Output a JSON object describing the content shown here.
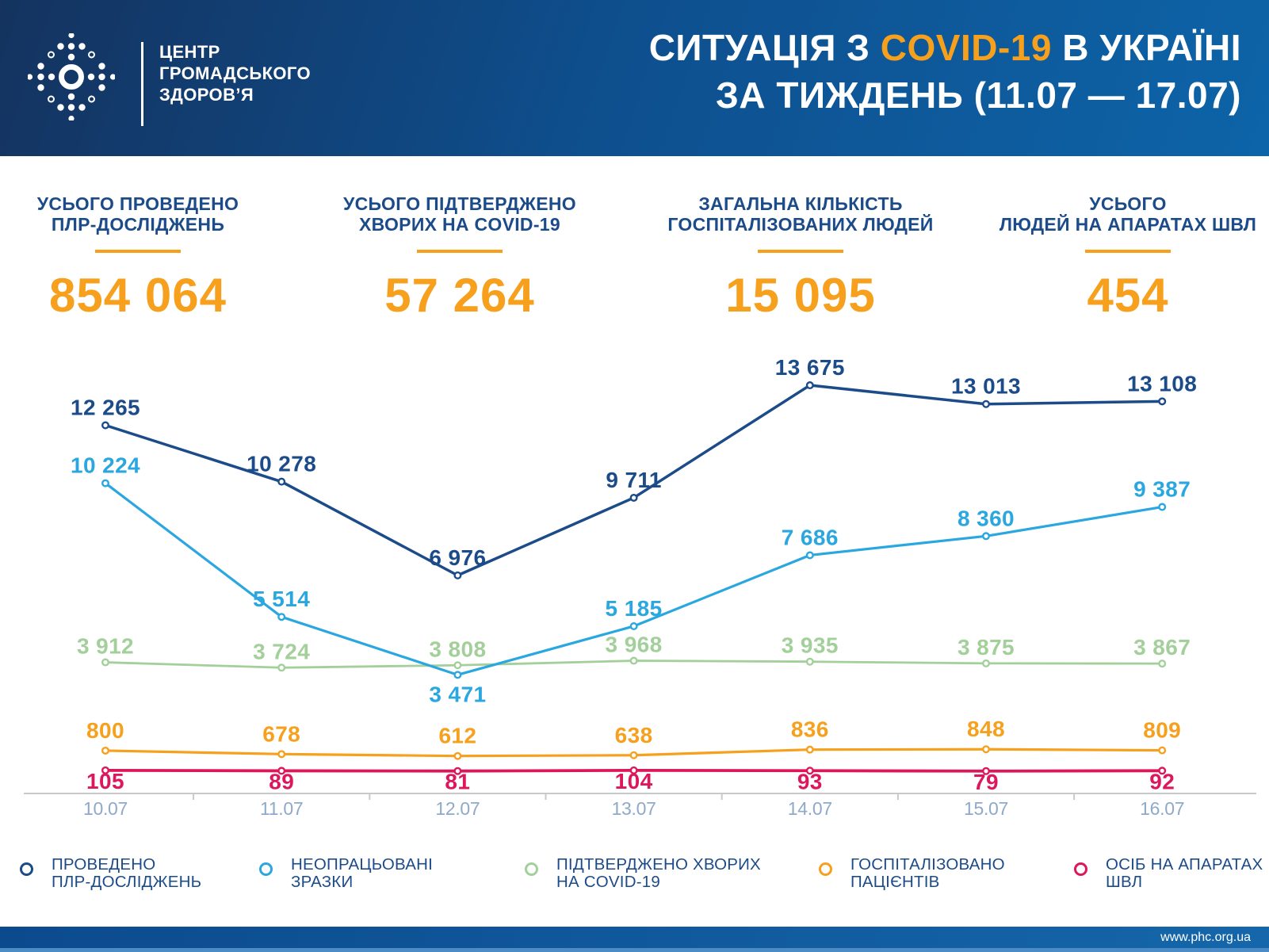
{
  "colors": {
    "navy": "#1c4b8a",
    "accent_orange": "#f6a01e",
    "light_blue": "#2ba7e0",
    "green": "#a3cf9b",
    "red": "#dd175c",
    "axis": "#c9c9c9",
    "date_label": "#8fa9c8",
    "header_gradient": [
      "#14335f",
      "#0e4f8e",
      "#0d64a8"
    ],
    "footer_gradient": [
      "#0c4a8e",
      "#1566aa"
    ],
    "footer_strip": "#4b8cc6"
  },
  "header": {
    "logo_lines": [
      "ЦЕНТР",
      "ГРОМАДСЬКОГО",
      "ЗДОРОВ’Я"
    ],
    "title_prefix": "СИТУАЦІЯ З ",
    "title_highlight": "COVID-19",
    "title_suffix": " В УКРАЇНІ",
    "title_line2": "ЗА ТИЖДЕНЬ (11.07 — 17.07)"
  },
  "stats": [
    {
      "line1": "УСЬОГО ПРОВЕДЕНО",
      "line2": "ПЛР-ДОСЛІДЖЕНЬ",
      "value": "854 064"
    },
    {
      "line1": "УСЬОГО ПІДТВЕРДЖЕНО",
      "line2": "ХВОРИХ НА COVID-19",
      "value": "57 264"
    },
    {
      "line1": "ЗАГАЛЬНА КІЛЬКІСТЬ",
      "line2": "ГОСПІТАЛІЗОВАНИХ ЛЮДЕЙ",
      "value": "15 095"
    },
    {
      "line1": "УСЬОГО",
      "line2": "ЛЮДЕЙ НА АПАРАТАХ ШВЛ",
      "value": "454"
    }
  ],
  "chart_data": {
    "type": "line",
    "categories": [
      "10.07",
      "11.07",
      "12.07",
      "13.07",
      "14.07",
      "15.07",
      "16.07"
    ],
    "series": [
      {
        "name": "ПРОВЕДЕНО ПЛР-ДОСЛІДЖЕНЬ",
        "color": "#1c4b8a",
        "values": [
          12265,
          10278,
          6976,
          9711,
          13675,
          13013,
          13108
        ],
        "label_side": "above"
      },
      {
        "name": "НЕОПРАЦЬОВАНІ ЗРАЗКИ",
        "color": "#2ba7e0",
        "values": [
          10224,
          5514,
          3471,
          5185,
          7686,
          8360,
          9387
        ],
        "label_side": "above",
        "label_side_overrides": {
          "2": "below"
        }
      },
      {
        "name": "ПІДТВЕРДЖЕНО ХВОРИХ НА COVID-19",
        "color": "#a3cf9b",
        "values": [
          3912,
          3724,
          3808,
          3968,
          3935,
          3875,
          3867
        ],
        "label_side": "above"
      },
      {
        "name": "ГОСПІТАЛІЗОВАНО ПАЦІЄНТІВ",
        "color": "#f6a01e",
        "values": [
          800,
          678,
          612,
          638,
          836,
          848,
          809
        ],
        "label_side": "above"
      },
      {
        "name": "ОСІБ НА АПАРАТАХ ШВЛ",
        "color": "#dd175c",
        "values": [
          105,
          89,
          81,
          104,
          93,
          79,
          92
        ],
        "label_side": "below"
      }
    ],
    "ylim": [
      0,
      14000
    ],
    "grid": false,
    "legend_position": "bottom",
    "value_label_format": "space_thousands"
  },
  "legend": {
    "items": [
      {
        "line1": "ПРОВЕДЕНО",
        "line2": "ПЛР-ДОСЛІДЖЕНЬ",
        "color": "#1c4b8a"
      },
      {
        "line1": "НЕОПРАЦЬОВАНІ",
        "line2": "ЗРАЗКИ",
        "color": "#2ba7e0"
      },
      {
        "line1": "ПІДТВЕРДЖЕНО ХВОРИХ",
        "line2": "НА COVID-19",
        "color": "#a3cf9b"
      },
      {
        "line1": "ГОСПІТАЛІЗОВАНО",
        "line2": "ПАЦІЄНТІВ",
        "color": "#f6a01e"
      },
      {
        "line1": "ОСІБ НА АПАРАТАХ",
        "line2": "ШВЛ",
        "color": "#dd175c"
      }
    ]
  },
  "footer": {
    "url": "www.phc.org.ua"
  }
}
